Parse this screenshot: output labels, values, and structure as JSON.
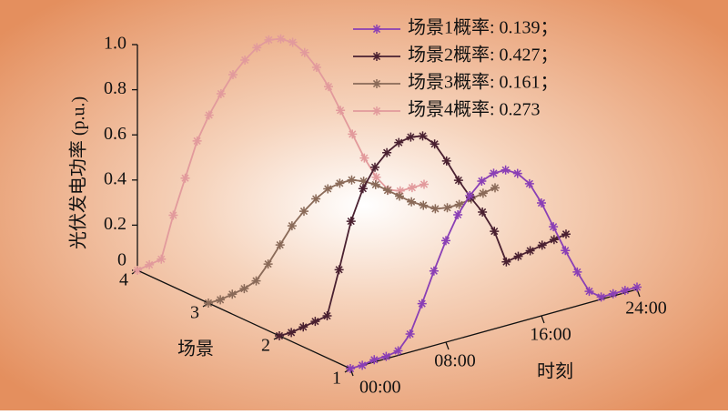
{
  "chart_data": {
    "type": "line3d",
    "ylabel": "光伏发电功率 (p.u.)",
    "xlabel": "时刻",
    "zlabel": "场景",
    "x": [
      0,
      1,
      2,
      3,
      4,
      5,
      6,
      7,
      8,
      9,
      10,
      11,
      12,
      13,
      14,
      15,
      16,
      17,
      18,
      19,
      20,
      21,
      22,
      23,
      24
    ],
    "xlim": [
      0,
      24
    ],
    "xticks": [
      {
        "value": 0,
        "label": "00:00"
      },
      {
        "value": 8,
        "label": "08:00"
      },
      {
        "value": 16,
        "label": "16:00"
      },
      {
        "value": 24,
        "label": "24:00"
      }
    ],
    "ylim": [
      0,
      1
    ],
    "yticks": [
      0,
      0.2,
      0.4,
      0.6,
      0.8,
      {
        "value": 1,
        "label": "1.0"
      }
    ],
    "scenes": [
      1,
      2,
      3,
      4
    ],
    "series": [
      {
        "name": "场景1概率: 0.139；",
        "color": "#8a3fb5",
        "values": [
          0,
          0,
          0.01,
          0.01,
          0.02,
          0.08,
          0.2,
          0.33,
          0.45,
          0.55,
          0.62,
          0.67,
          0.69,
          0.69,
          0.66,
          0.6,
          0.5,
          0.38,
          0.26,
          0.15,
          0.05,
          0.01,
          0.01,
          0.01,
          0.01
        ]
      },
      {
        "name": "场景2概率: 0.427；",
        "color": "#4a2030",
        "values": [
          0,
          0,
          0.01,
          0.02,
          0.03,
          0.22,
          0.42,
          0.55,
          0.63,
          0.68,
          0.71,
          0.72,
          0.71,
          0.66,
          0.57,
          0.47,
          0.38,
          0.3,
          0.2,
          0.05,
          0.06,
          0.07,
          0.08,
          0.09,
          0.1
        ]
      },
      {
        "name": "场景3概率: 0.161；",
        "color": "#8a6a58",
        "values": [
          0,
          0,
          0.01,
          0.02,
          0.04,
          0.1,
          0.17,
          0.24,
          0.29,
          0.33,
          0.36,
          0.37,
          0.37,
          0.35,
          0.32,
          0.28,
          0.24,
          0.2,
          0.17,
          0.14,
          0.13,
          0.13,
          0.14,
          0.15,
          0.16
        ]
      },
      {
        "name": "场景4概率: 0.273",
        "color": "#e29a9c",
        "values": [
          0,
          0.01,
          0.02,
          0.2,
          0.35,
          0.5,
          0.6,
          0.68,
          0.75,
          0.8,
          0.84,
          0.86,
          0.85,
          0.82,
          0.76,
          0.68,
          0.58,
          0.46,
          0.34,
          0.22,
          0.12,
          0.05,
          0.03,
          0.03,
          0.03
        ]
      }
    ]
  }
}
